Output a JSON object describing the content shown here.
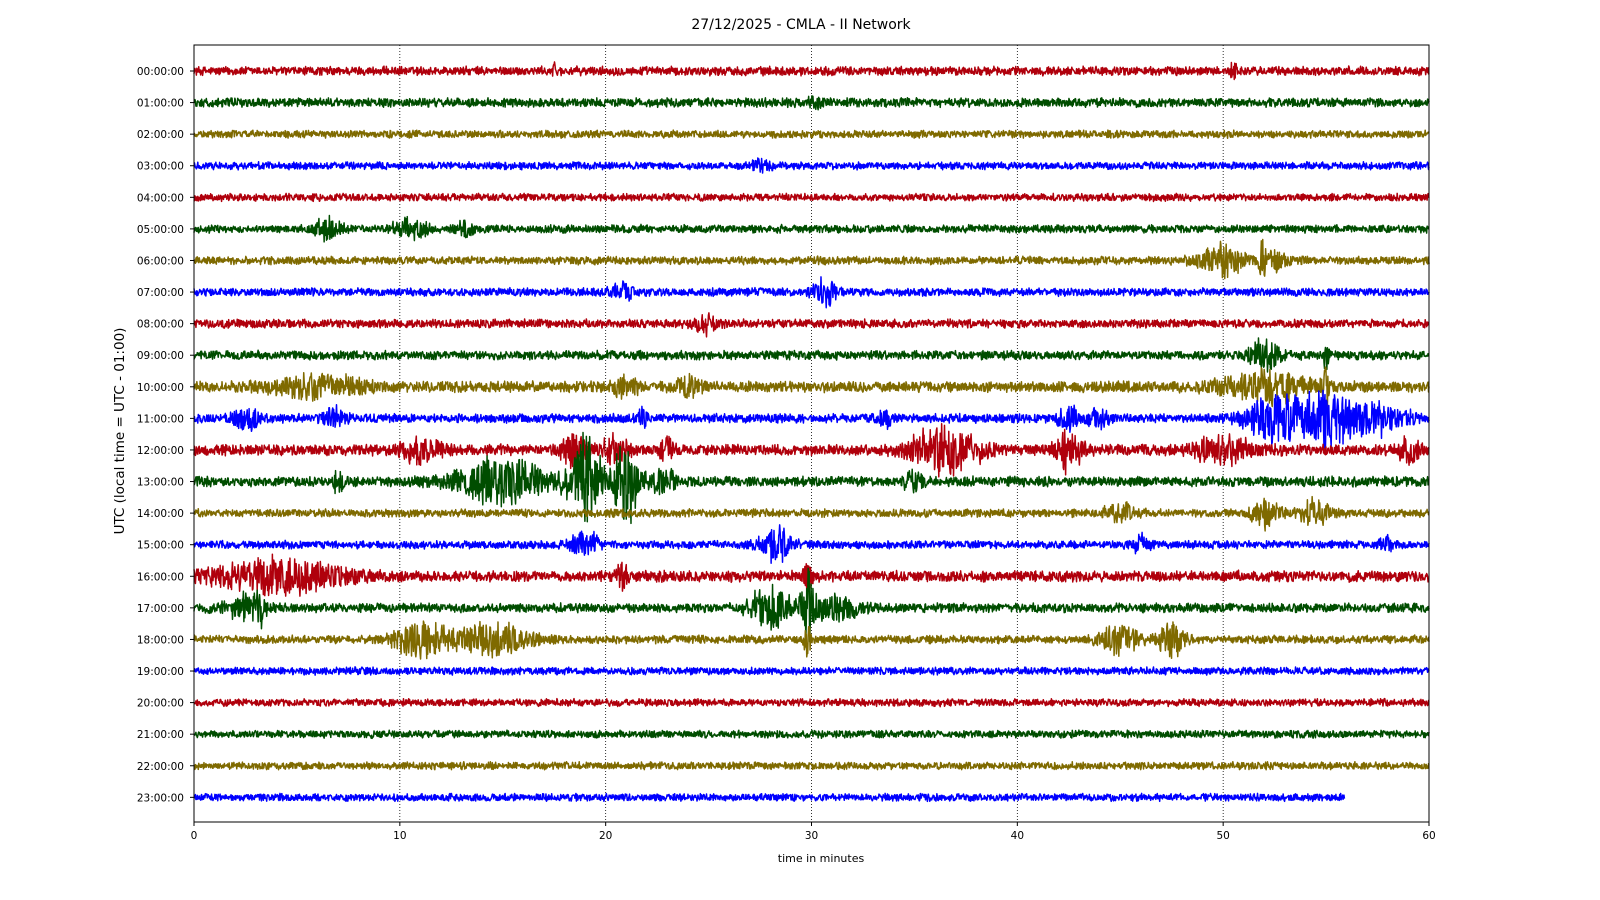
{
  "chart_data": {
    "type": "line",
    "title": "27/12/2025 - CMLA - II Network",
    "xlabel": "time in minutes",
    "ylabel": "UTC (local time = UTC - 01:00)",
    "xlim": [
      0,
      60
    ],
    "x_ticks": [
      0,
      10,
      20,
      30,
      40,
      50,
      60
    ],
    "grid": "vertical dotted",
    "legend": "none",
    "trace_colors": [
      "#b0000c",
      "#004d00",
      "#7f6a00",
      "#0000ff"
    ],
    "rows": [
      {
        "label": "00:00:00",
        "duration_min": 60,
        "amplitude": 0.18,
        "events": [
          {
            "t": 17.5,
            "amp": 0.25,
            "w": 0.1
          },
          {
            "t": 50.5,
            "amp": 0.3,
            "w": 0.15
          }
        ]
      },
      {
        "label": "01:00:00",
        "duration_min": 60,
        "amplitude": 0.18,
        "events": [
          {
            "t": 30.2,
            "amp": 0.25,
            "w": 0.3
          }
        ]
      },
      {
        "label": "02:00:00",
        "duration_min": 60,
        "amplitude": 0.15,
        "events": []
      },
      {
        "label": "03:00:00",
        "duration_min": 60,
        "amplitude": 0.15,
        "events": [
          {
            "t": 27.5,
            "amp": 0.22,
            "w": 0.5
          }
        ]
      },
      {
        "label": "04:00:00",
        "duration_min": 60,
        "amplitude": 0.15,
        "events": []
      },
      {
        "label": "05:00:00",
        "duration_min": 60,
        "amplitude": 0.16,
        "events": [
          {
            "t": 6.5,
            "amp": 0.4,
            "w": 0.6
          },
          {
            "t": 10.5,
            "amp": 0.35,
            "w": 0.8
          },
          {
            "t": 13.2,
            "amp": 0.3,
            "w": 0.4
          }
        ]
      },
      {
        "label": "06:00:00",
        "duration_min": 60,
        "amplitude": 0.16,
        "events": [
          {
            "t": 50.0,
            "amp": 0.55,
            "w": 1.2
          },
          {
            "t": 51.9,
            "amp": 0.85,
            "w": 0.15
          },
          {
            "t": 52.5,
            "amp": 0.35,
            "w": 0.6
          }
        ]
      },
      {
        "label": "07:00:00",
        "duration_min": 60,
        "amplitude": 0.16,
        "events": [
          {
            "t": 20.8,
            "amp": 0.35,
            "w": 0.5
          },
          {
            "t": 30.7,
            "amp": 0.55,
            "w": 0.6
          }
        ]
      },
      {
        "label": "08:00:00",
        "duration_min": 60,
        "amplitude": 0.17,
        "events": [
          {
            "t": 24.8,
            "amp": 0.4,
            "w": 0.5
          }
        ]
      },
      {
        "label": "09:00:00",
        "duration_min": 60,
        "amplitude": 0.18,
        "events": [
          {
            "t": 52.0,
            "amp": 0.6,
            "w": 0.7
          },
          {
            "t": 55.0,
            "amp": 0.7,
            "w": 0.1
          }
        ]
      },
      {
        "label": "10:00:00",
        "duration_min": 60,
        "amplitude": 0.22,
        "events": [
          {
            "t": 6.0,
            "amp": 0.45,
            "w": 2.0
          },
          {
            "t": 21.0,
            "amp": 0.35,
            "w": 0.6
          },
          {
            "t": 24.0,
            "amp": 0.3,
            "w": 0.6
          },
          {
            "t": 52.0,
            "amp": 0.6,
            "w": 2.0
          },
          {
            "t": 55.0,
            "amp": 0.9,
            "w": 0.15
          }
        ]
      },
      {
        "label": "11:00:00",
        "duration_min": 60,
        "amplitude": 0.18,
        "events": [
          {
            "t": 2.6,
            "amp": 0.45,
            "w": 0.6
          },
          {
            "t": 6.8,
            "amp": 0.35,
            "w": 0.5
          },
          {
            "t": 21.8,
            "amp": 0.4,
            "w": 0.2
          },
          {
            "t": 33.5,
            "amp": 0.35,
            "w": 0.4
          },
          {
            "t": 42.5,
            "amp": 0.4,
            "w": 0.5
          },
          {
            "t": 44.0,
            "amp": 0.35,
            "w": 0.5
          },
          {
            "t": 52.5,
            "amp": 0.85,
            "w": 1.4
          },
          {
            "t": 55.0,
            "amp": 1.1,
            "w": 1.3
          },
          {
            "t": 57.5,
            "amp": 0.55,
            "w": 1.5
          }
        ]
      },
      {
        "label": "12:00:00",
        "duration_min": 60,
        "amplitude": 0.22,
        "events": [
          {
            "t": 11.0,
            "amp": 0.4,
            "w": 1.0
          },
          {
            "t": 18.5,
            "amp": 0.6,
            "w": 0.6
          },
          {
            "t": 20.5,
            "amp": 0.55,
            "w": 0.6
          },
          {
            "t": 23.0,
            "amp": 0.5,
            "w": 0.3
          },
          {
            "t": 36.5,
            "amp": 0.95,
            "w": 1.6
          },
          {
            "t": 42.5,
            "amp": 0.8,
            "w": 0.6
          },
          {
            "t": 50.0,
            "amp": 0.45,
            "w": 1.5
          },
          {
            "t": 59.0,
            "amp": 0.5,
            "w": 0.5
          }
        ]
      },
      {
        "label": "13:00:00",
        "duration_min": 60,
        "amplitude": 0.2,
        "events": [
          {
            "t": 7.0,
            "amp": 0.5,
            "w": 0.2
          },
          {
            "t": 15.0,
            "amp": 0.85,
            "w": 2.2
          },
          {
            "t": 19.0,
            "amp": 1.7,
            "w": 0.8
          },
          {
            "t": 21.0,
            "amp": 1.6,
            "w": 0.6
          },
          {
            "t": 22.8,
            "amp": 0.5,
            "w": 0.6
          },
          {
            "t": 35.0,
            "amp": 0.4,
            "w": 0.5
          }
        ]
      },
      {
        "label": "14:00:00",
        "duration_min": 60,
        "amplitude": 0.16,
        "events": [
          {
            "t": 45.0,
            "amp": 0.35,
            "w": 0.8
          },
          {
            "t": 52.0,
            "amp": 0.65,
            "w": 0.6
          },
          {
            "t": 54.5,
            "amp": 0.5,
            "w": 0.8
          }
        ]
      },
      {
        "label": "15:00:00",
        "duration_min": 60,
        "amplitude": 0.16,
        "events": [
          {
            "t": 19.0,
            "amp": 0.5,
            "w": 0.7
          },
          {
            "t": 28.3,
            "amp": 0.65,
            "w": 0.8
          },
          {
            "t": 46.0,
            "amp": 0.35,
            "w": 0.4
          },
          {
            "t": 57.9,
            "amp": 0.3,
            "w": 0.3
          }
        ]
      },
      {
        "label": "16:00:00",
        "duration_min": 60,
        "amplitude": 0.22,
        "events": [
          {
            "t": 4.0,
            "amp": 0.65,
            "w": 3.0
          },
          {
            "t": 20.8,
            "amp": 0.5,
            "w": 0.3
          },
          {
            "t": 29.8,
            "amp": 0.6,
            "w": 0.2
          }
        ]
      },
      {
        "label": "17:00:00",
        "duration_min": 60,
        "amplitude": 0.18,
        "events": [
          {
            "t": 2.5,
            "amp": 0.45,
            "w": 1.0
          },
          {
            "t": 3.2,
            "amp": 0.6,
            "w": 0.15
          },
          {
            "t": 28.0,
            "amp": 0.8,
            "w": 1.0
          },
          {
            "t": 29.8,
            "amp": 1.5,
            "w": 0.25
          },
          {
            "t": 31.0,
            "amp": 0.5,
            "w": 1.2
          }
        ]
      },
      {
        "label": "18:00:00",
        "duration_min": 60,
        "amplitude": 0.16,
        "events": [
          {
            "t": 11.0,
            "amp": 0.7,
            "w": 1.2
          },
          {
            "t": 14.5,
            "amp": 0.6,
            "w": 1.8
          },
          {
            "t": 29.8,
            "amp": 0.6,
            "w": 0.15
          },
          {
            "t": 45.0,
            "amp": 0.5,
            "w": 1.0
          },
          {
            "t": 47.5,
            "amp": 0.8,
            "w": 0.6
          }
        ]
      },
      {
        "label": "19:00:00",
        "duration_min": 60,
        "amplitude": 0.15,
        "events": []
      },
      {
        "label": "20:00:00",
        "duration_min": 60,
        "amplitude": 0.15,
        "events": []
      },
      {
        "label": "21:00:00",
        "duration_min": 60,
        "amplitude": 0.15,
        "events": []
      },
      {
        "label": "22:00:00",
        "duration_min": 60,
        "amplitude": 0.15,
        "events": []
      },
      {
        "label": "23:00:00",
        "duration_min": 55.9,
        "amplitude": 0.15,
        "events": []
      }
    ]
  }
}
